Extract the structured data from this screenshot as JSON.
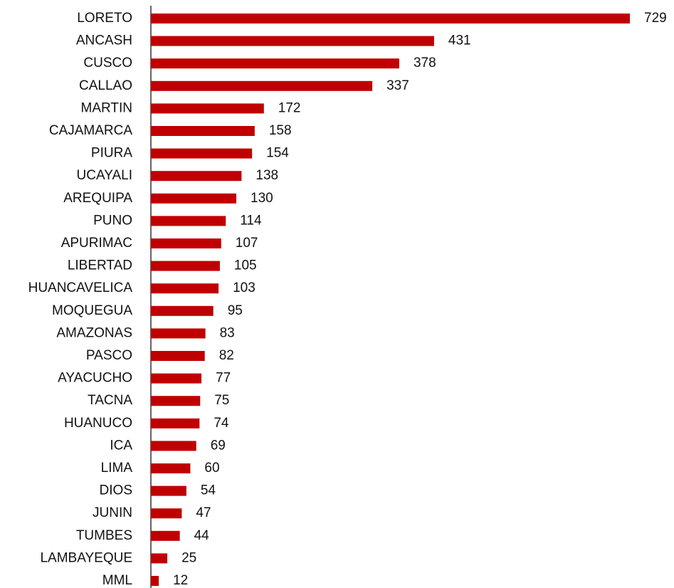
{
  "chart_data": {
    "type": "bar",
    "orientation": "horizontal",
    "categories": [
      "LORETO",
      "ANCASH",
      "CUSCO",
      "CALLAO",
      "MARTIN",
      "CAJAMARCA",
      "PIURA",
      "UCAYALI",
      "AREQUIPA",
      "PUNO",
      "APURIMAC",
      "LIBERTAD",
      "HUANCAVELICA",
      "MOQUEGUA",
      "AMAZONAS",
      "PASCO",
      "AYACUCHO",
      "TACNA",
      "HUANUCO",
      "ICA",
      "LIMA",
      "DIOS",
      "JUNIN",
      "TUMBES",
      "LAMBAYEQUE",
      "MML"
    ],
    "values": [
      729,
      431,
      378,
      337,
      172,
      158,
      154,
      138,
      130,
      114,
      107,
      105,
      103,
      95,
      83,
      82,
      77,
      75,
      74,
      69,
      60,
      54,
      47,
      44,
      25,
      12
    ],
    "color": "#c00000"
  }
}
